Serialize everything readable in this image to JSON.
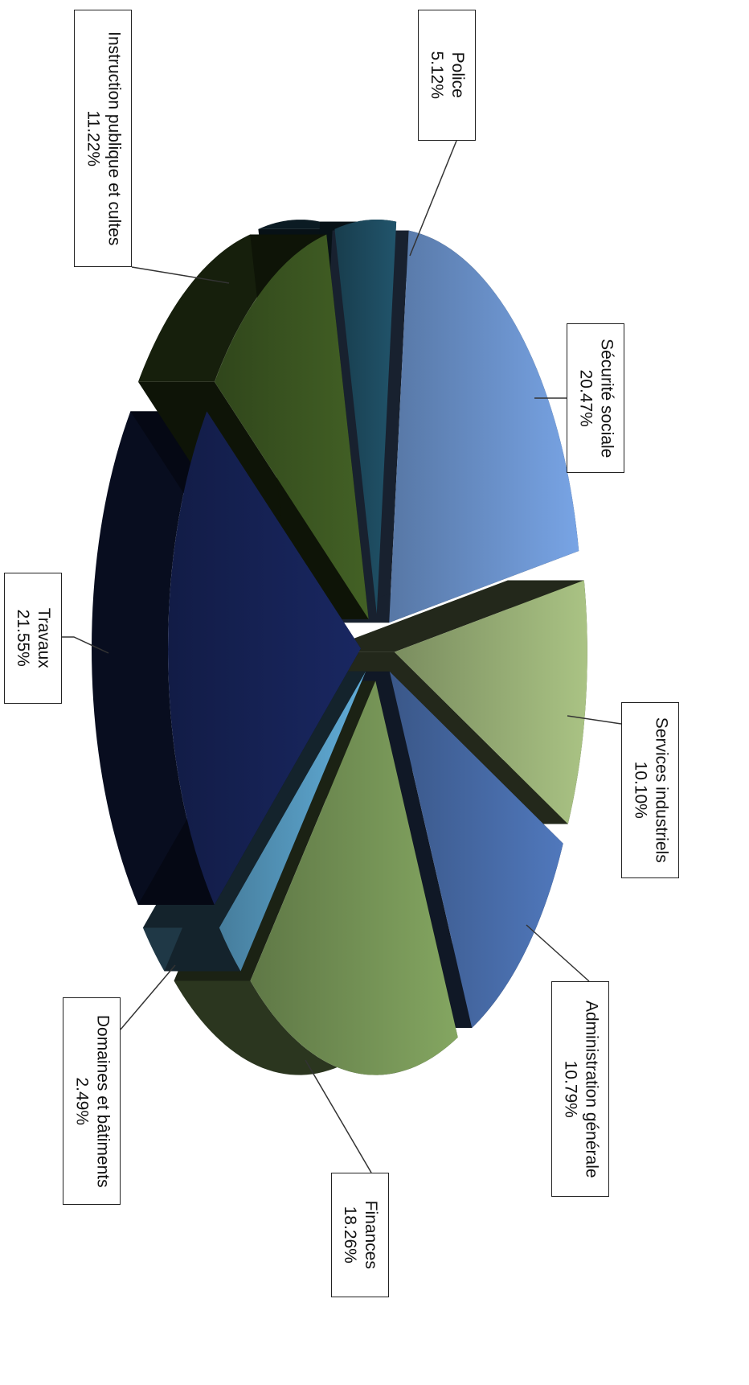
{
  "chart_data": {
    "type": "pie",
    "title": "",
    "slices": [
      {
        "label": "Police",
        "value": 5.12,
        "display": "5.12%",
        "color": "#1f4e63"
      },
      {
        "label": "Sécurité sociale",
        "value": 20.47,
        "display": "20.47%",
        "color": "#6f98d4"
      },
      {
        "label": "Services industriels",
        "value": 10.1,
        "display": "10.10%",
        "color": "#9db57a"
      },
      {
        "label": "Administration générale",
        "value": 10.79,
        "display": "10.79%",
        "color": "#4a6fae"
      },
      {
        "label": "Finances",
        "value": 18.26,
        "display": "18.26%",
        "color": "#7a9a5a"
      },
      {
        "label": "Domaines et bâtiments",
        "value": 2.49,
        "display": "2.49%",
        "color": "#5aa0c8"
      },
      {
        "label": "Travaux",
        "value": 21.55,
        "display": "21.55%",
        "color": "#17245a"
      },
      {
        "label": "Instruction publique et cultes",
        "value": 11.22,
        "display": "11.22%",
        "color": "#3e5a22"
      }
    ],
    "legend": "callout labels",
    "style": "3D exploded pie, rotated 90°"
  }
}
